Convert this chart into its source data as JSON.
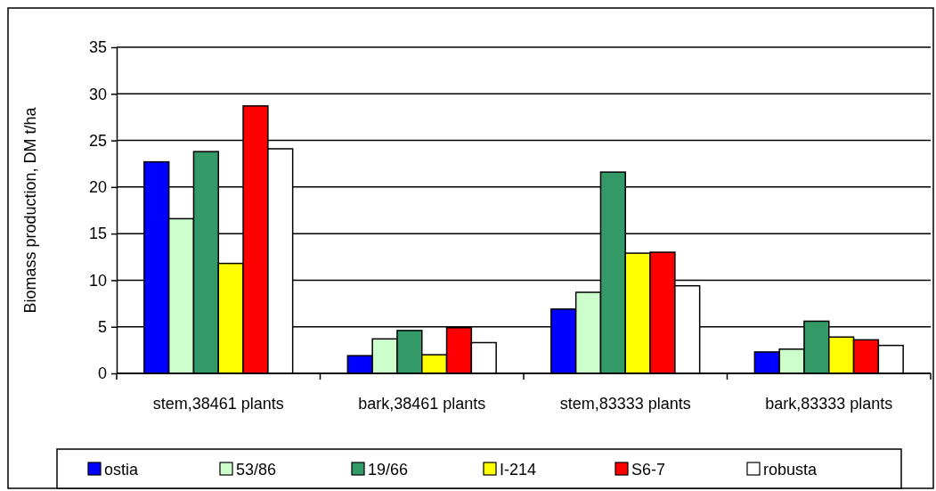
{
  "chart_data": {
    "type": "bar",
    "ylabel": "Biomass production, DM t/ha",
    "categories": [
      "stem,38461 plants",
      "bark,38461 plants",
      "stem,83333 plants",
      "bark,83333 plants"
    ],
    "series": [
      {
        "name": "ostia",
        "color": "#0000ff",
        "values": [
          22.7,
          1.9,
          6.9,
          2.3
        ]
      },
      {
        "name": "53/86",
        "color": "#ccffcc",
        "values": [
          16.6,
          3.7,
          8.7,
          2.6
        ]
      },
      {
        "name": "19/66",
        "color": "#339966",
        "values": [
          23.8,
          4.6,
          21.6,
          5.6
        ]
      },
      {
        "name": "I-214",
        "color": "#ffff00",
        "values": [
          11.8,
          2.0,
          12.9,
          3.9
        ]
      },
      {
        "name": "S6-7",
        "color": "#ff0000",
        "values": [
          28.7,
          4.9,
          13.0,
          3.6
        ]
      },
      {
        "name": "robusta",
        "color": "#ffffff",
        "values": [
          24.1,
          3.3,
          9.4,
          3.0
        ]
      }
    ],
    "ylim": [
      0,
      35
    ],
    "yticks": [
      0,
      5,
      10,
      15,
      20,
      25,
      30,
      35
    ],
    "grid": "y",
    "legend": "bottom"
  }
}
